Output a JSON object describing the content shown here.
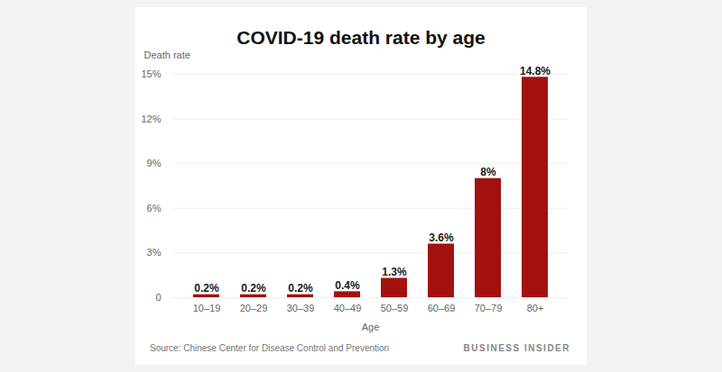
{
  "chart_data": {
    "type": "bar",
    "title": "COVID-19 death rate by age",
    "x_label": "Age",
    "y_label": "Death rate",
    "categories": [
      "10–19",
      "20–29",
      "30–39",
      "40–49",
      "50–59",
      "60–69",
      "70–79",
      "80+"
    ],
    "values": [
      0.2,
      0.2,
      0.2,
      0.4,
      1.3,
      3.6,
      8,
      14.8
    ],
    "value_labels": [
      "0.2%",
      "0.2%",
      "0.2%",
      "0.4%",
      "1.3%",
      "3.6%",
      "8%",
      "14.8%"
    ],
    "color": "#a3110f",
    "ylim": [
      0,
      15
    ],
    "yticks": [
      0,
      {
        "value": 3,
        "label": "3%"
      },
      {
        "value": 6,
        "label": "6%"
      },
      {
        "value": 9,
        "label": "9%"
      },
      {
        "value": 12,
        "label": "12%"
      },
      {
        "value": 15,
        "label": "15%"
      }
    ],
    "grid": true,
    "data_labels": true,
    "annotations": [
      "Source: Chinese Center for Disease Control and Prevention",
      "BUSINESS INSIDER"
    ]
  }
}
